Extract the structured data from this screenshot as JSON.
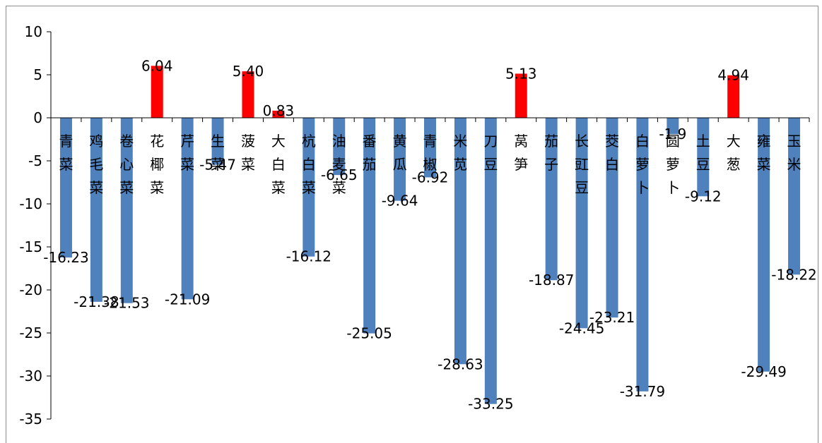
{
  "chart_data": {
    "type": "bar",
    "categories": [
      "青菜",
      "鸡毛菜",
      "卷心菜",
      "花椰菜",
      "芹菜",
      "生菜",
      "菠菜",
      "大白菜",
      "杭白菜",
      "油麦菜",
      "番茄",
      "黄瓜",
      "青椒",
      "米苋",
      "刀豆",
      "莴笋",
      "茄子",
      "长豇豆",
      "茭白",
      "白萝卜",
      "圆萝卜",
      "土豆",
      "大葱",
      "雍菜",
      "玉米"
    ],
    "values": [
      -16.23,
      -21.38,
      -21.53,
      6.04,
      -21.09,
      -5.47,
      5.4,
      0.83,
      -16.12,
      -6.65,
      -25.05,
      -9.64,
      -6.92,
      -28.63,
      -33.25,
      5.13,
      -18.87,
      -24.45,
      -23.21,
      -31.79,
      -1.9,
      -9.12,
      4.94,
      -29.49,
      -18.22
    ],
    "data_labels": [
      "-16.23",
      "-21.38",
      "-21.53",
      "6.04",
      "-21.09",
      "-5.47",
      "5.40",
      "0.83",
      "-16.12",
      "-6.65",
      "-25.05",
      "-9.64",
      "-6.92",
      "-28.63",
      "-33.25",
      "5.13",
      "-18.87",
      "-24.45",
      "-23.21",
      "-31.79",
      "-1.9",
      "-9.12",
      "4.94",
      "-29.49",
      "-18.22"
    ],
    "yticks": [
      "10",
      "5",
      "0",
      "-5",
      "-10",
      "-15",
      "-20",
      "-25",
      "-30",
      "-35"
    ],
    "ylim": [
      -35,
      10
    ],
    "title": "",
    "xlabel": "",
    "ylabel": "",
    "grid": false,
    "legend": "none",
    "colors": {
      "positive": "#ff0000",
      "negative": "#4f81bd",
      "axis": "#000000"
    }
  }
}
